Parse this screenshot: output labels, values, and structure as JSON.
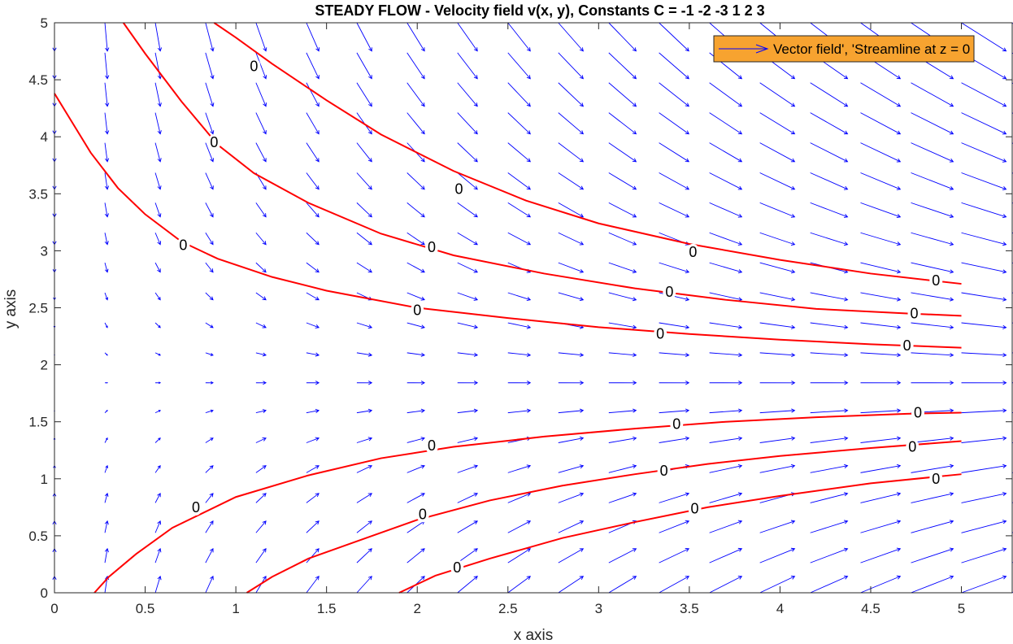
{
  "chart_data": {
    "type": "quiver+contour",
    "title": "STEADY FLOW - Velocity field v(x, y),  Constants C = -1 -2 -3 1 2 3",
    "xlabel": "x axis",
    "ylabel": "y axis",
    "xlim": [
      0,
      5.28
    ],
    "ylim": [
      0,
      5
    ],
    "xticks": [
      "0",
      "0.5",
      "1",
      "1.5",
      "2",
      "2.5",
      "3",
      "3.5",
      "4",
      "4.5",
      "5"
    ],
    "xtick_values": [
      0,
      0.5,
      1,
      1.5,
      2,
      2.5,
      3,
      3.5,
      4,
      4.5,
      5
    ],
    "yticks": [
      "0",
      "0.5",
      "1",
      "1.5",
      "2",
      "2.5",
      "3",
      "3.5",
      "4",
      "4.5",
      "5"
    ],
    "ytick_values": [
      0,
      0.5,
      1,
      1.5,
      2,
      2.5,
      3,
      3.5,
      4,
      4.5,
      5
    ],
    "legend": {
      "label": "Vector field', 'Streamline at z = 0",
      "position": "top-right",
      "background": "#f7a330"
    },
    "colors": {
      "vector": "#0000ff",
      "streamline": "#ff0000",
      "axes": "#262626",
      "labels": "#000000"
    },
    "vector_field": {
      "formula": "u = x, v = -(y - 1.84)",
      "x_grid": [
        0,
        0.278,
        0.556,
        0.833,
        1.111,
        1.389,
        1.667,
        1.944,
        2.222,
        2.5,
        2.778,
        3.056,
        3.333,
        3.611,
        3.889,
        4.167,
        4.444,
        4.722,
        5.0,
        5.278
      ],
      "y_grid": [
        0,
        0.263,
        0.526,
        0.789,
        1.053,
        1.316,
        1.579,
        1.842,
        2.105,
        2.368,
        2.632,
        2.895,
        3.158,
        3.421,
        3.684,
        3.947,
        4.211,
        4.474,
        4.737,
        5.0
      ]
    },
    "streamlines": [
      {
        "contour_label": "0",
        "points": [
          [
            0.0,
            4.38
          ],
          [
            0.1,
            4.12
          ],
          [
            0.2,
            3.86
          ],
          [
            0.35,
            3.55
          ],
          [
            0.5,
            3.32
          ],
          [
            0.7,
            3.08
          ],
          [
            0.9,
            2.93
          ],
          [
            1.2,
            2.77
          ],
          [
            1.5,
            2.65
          ],
          [
            2.0,
            2.5
          ],
          [
            2.5,
            2.41
          ],
          [
            3.0,
            2.33
          ],
          [
            3.5,
            2.27
          ],
          [
            4.0,
            2.22
          ],
          [
            4.5,
            2.18
          ],
          [
            5.0,
            2.15
          ]
        ],
        "label_positions": [
          [
            0.71,
            3.05
          ],
          [
            2.0,
            2.48
          ],
          [
            3.34,
            2.27
          ],
          [
            4.7,
            2.17
          ]
        ]
      },
      {
        "contour_label": "0",
        "points": [
          [
            0.38,
            5.0
          ],
          [
            0.5,
            4.73
          ],
          [
            0.7,
            4.31
          ],
          [
            0.9,
            3.93
          ],
          [
            1.1,
            3.68
          ],
          [
            1.4,
            3.42
          ],
          [
            1.8,
            3.15
          ],
          [
            2.2,
            2.96
          ],
          [
            2.7,
            2.8
          ],
          [
            3.2,
            2.67
          ],
          [
            3.7,
            2.57
          ],
          [
            4.2,
            2.49
          ],
          [
            4.7,
            2.45
          ],
          [
            5.0,
            2.43
          ]
        ],
        "label_positions": [
          [
            0.88,
            3.95
          ],
          [
            2.08,
            3.03
          ],
          [
            3.39,
            2.64
          ],
          [
            4.74,
            2.45
          ]
        ]
      },
      {
        "contour_label": "0",
        "points": [
          [
            0.88,
            5.0
          ],
          [
            1.0,
            4.87
          ],
          [
            1.2,
            4.64
          ],
          [
            1.5,
            4.32
          ],
          [
            1.8,
            4.02
          ],
          [
            2.2,
            3.7
          ],
          [
            2.6,
            3.44
          ],
          [
            3.0,
            3.24
          ],
          [
            3.5,
            3.06
          ],
          [
            4.0,
            2.92
          ],
          [
            4.5,
            2.8
          ],
          [
            5.0,
            2.71
          ]
        ],
        "label_positions": [
          [
            1.1,
            4.62
          ],
          [
            2.23,
            3.54
          ],
          [
            3.52,
            2.99
          ],
          [
            4.86,
            2.74
          ]
        ]
      },
      {
        "contour_label": "0",
        "points": [
          [
            0.22,
            0.0
          ],
          [
            0.3,
            0.14
          ],
          [
            0.45,
            0.34
          ],
          [
            0.65,
            0.57
          ],
          [
            1.0,
            0.84
          ],
          [
            1.4,
            1.03
          ],
          [
            1.8,
            1.18
          ],
          [
            2.2,
            1.28
          ],
          [
            2.7,
            1.37
          ],
          [
            3.2,
            1.44
          ],
          [
            3.7,
            1.5
          ],
          [
            4.2,
            1.54
          ],
          [
            4.7,
            1.57
          ],
          [
            5.0,
            1.58
          ]
        ],
        "label_positions": [
          [
            0.78,
            0.75
          ],
          [
            2.08,
            1.29
          ],
          [
            3.43,
            1.48
          ],
          [
            4.76,
            1.58
          ]
        ]
      },
      {
        "contour_label": "0",
        "points": [
          [
            1.06,
            0.0
          ],
          [
            1.2,
            0.14
          ],
          [
            1.4,
            0.3
          ],
          [
            1.7,
            0.47
          ],
          [
            2.0,
            0.64
          ],
          [
            2.4,
            0.81
          ],
          [
            2.8,
            0.94
          ],
          [
            3.2,
            1.04
          ],
          [
            3.6,
            1.13
          ],
          [
            4.0,
            1.2
          ],
          [
            4.5,
            1.27
          ],
          [
            5.0,
            1.33
          ]
        ],
        "label_positions": [
          [
            2.03,
            0.69
          ],
          [
            3.36,
            1.07
          ],
          [
            4.73,
            1.28
          ]
        ]
      },
      {
        "contour_label": "0",
        "points": [
          [
            1.9,
            0.0
          ],
          [
            2.1,
            0.15
          ],
          [
            2.4,
            0.3
          ],
          [
            2.8,
            0.48
          ],
          [
            3.2,
            0.62
          ],
          [
            3.6,
            0.75
          ],
          [
            4.0,
            0.85
          ],
          [
            4.5,
            0.96
          ],
          [
            5.0,
            1.04
          ]
        ],
        "label_positions": [
          [
            2.22,
            0.22
          ],
          [
            3.53,
            0.74
          ],
          [
            4.86,
            1.0
          ]
        ]
      }
    ]
  }
}
